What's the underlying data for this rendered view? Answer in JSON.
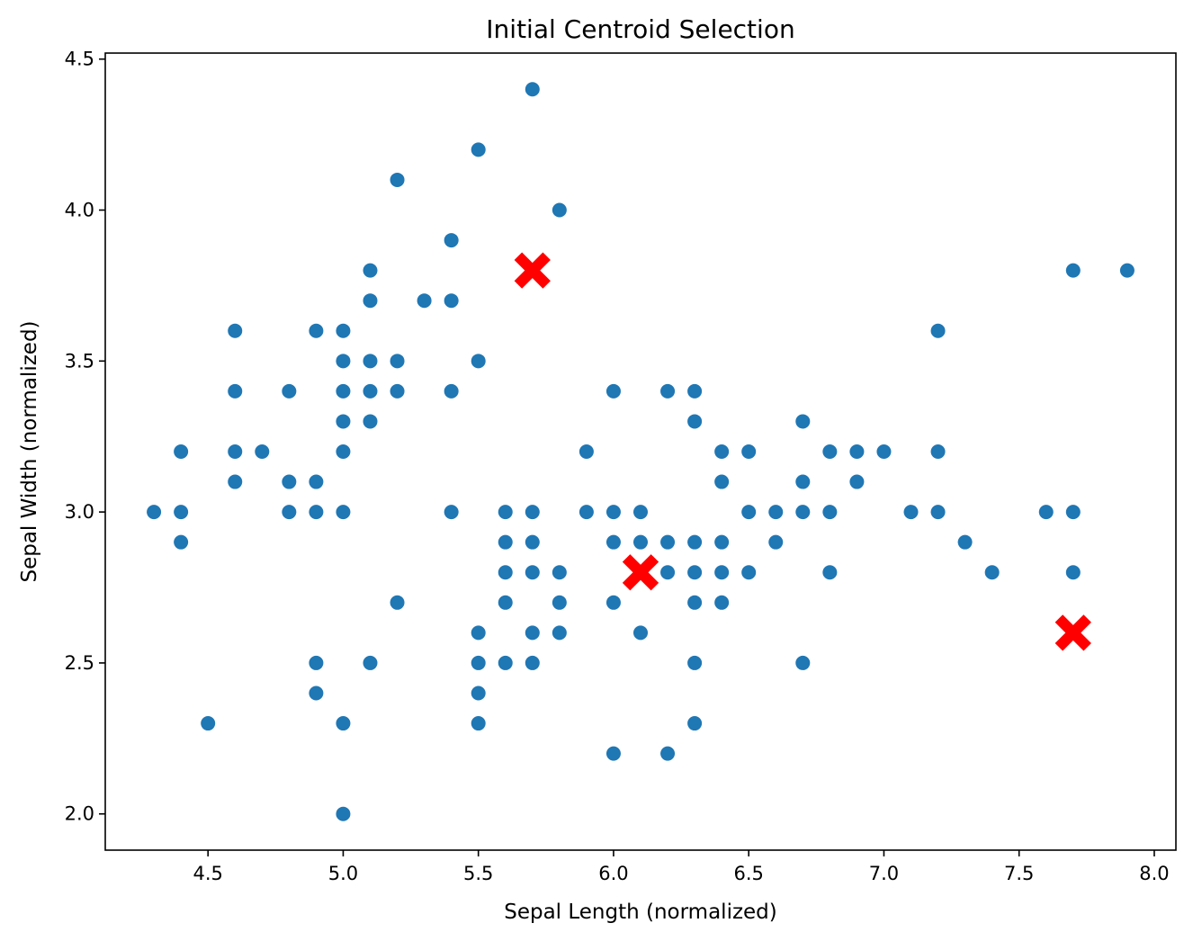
{
  "chart_data": {
    "type": "scatter",
    "title": "Initial Centroid Selection",
    "xlabel": "Sepal Length (normalized)",
    "ylabel": "Sepal Width (normalized)",
    "xlim": [
      4.12,
      8.08
    ],
    "ylim": [
      1.88,
      4.52
    ],
    "xticks": [
      4.5,
      5.0,
      5.5,
      6.0,
      6.5,
      7.0,
      7.5,
      8.0
    ],
    "yticks": [
      2.0,
      2.5,
      3.0,
      3.5,
      4.0,
      4.5
    ],
    "xtick_labels": [
      "4.5",
      "5.0",
      "5.5",
      "6.0",
      "6.5",
      "7.0",
      "7.5",
      "8.0"
    ],
    "ytick_labels": [
      "2.0",
      "2.5",
      "3.0",
      "3.5",
      "4.0",
      "4.5"
    ],
    "grid": false,
    "colors": {
      "points": "#1f77b4",
      "centroids": "#ff0000"
    },
    "series": [
      {
        "marker": "circle",
        "color": "#1f77b4",
        "points": [
          [
            4.3,
            3.0
          ],
          [
            4.4,
            3.2
          ],
          [
            4.4,
            3.0
          ],
          [
            4.4,
            2.9
          ],
          [
            4.5,
            2.3
          ],
          [
            4.6,
            3.6
          ],
          [
            4.6,
            3.4
          ],
          [
            4.6,
            3.2
          ],
          [
            4.6,
            3.1
          ],
          [
            4.7,
            3.2
          ],
          [
            4.8,
            3.4
          ],
          [
            4.8,
            3.1
          ],
          [
            4.8,
            3.0
          ],
          [
            4.9,
            3.6
          ],
          [
            4.9,
            3.1
          ],
          [
            4.9,
            3.0
          ],
          [
            4.9,
            2.5
          ],
          [
            4.9,
            2.4
          ],
          [
            5.0,
            3.6
          ],
          [
            5.0,
            3.5
          ],
          [
            5.0,
            3.4
          ],
          [
            5.0,
            3.3
          ],
          [
            5.0,
            3.2
          ],
          [
            5.0,
            3.0
          ],
          [
            5.0,
            2.3
          ],
          [
            5.0,
            2.0
          ],
          [
            5.1,
            3.8
          ],
          [
            5.1,
            3.7
          ],
          [
            5.1,
            3.5
          ],
          [
            5.1,
            3.4
          ],
          [
            5.1,
            3.3
          ],
          [
            5.1,
            2.5
          ],
          [
            5.2,
            4.1
          ],
          [
            5.2,
            3.5
          ],
          [
            5.2,
            3.4
          ],
          [
            5.2,
            2.7
          ],
          [
            5.3,
            3.7
          ],
          [
            5.4,
            3.9
          ],
          [
            5.4,
            3.7
          ],
          [
            5.4,
            3.4
          ],
          [
            5.4,
            3.0
          ],
          [
            5.5,
            4.2
          ],
          [
            5.5,
            3.5
          ],
          [
            5.5,
            2.6
          ],
          [
            5.5,
            2.5
          ],
          [
            5.5,
            2.4
          ],
          [
            5.5,
            2.3
          ],
          [
            5.6,
            3.0
          ],
          [
            5.6,
            2.9
          ],
          [
            5.6,
            2.8
          ],
          [
            5.6,
            2.7
          ],
          [
            5.6,
            2.5
          ],
          [
            5.7,
            4.4
          ],
          [
            5.7,
            3.0
          ],
          [
            5.7,
            2.9
          ],
          [
            5.7,
            2.8
          ],
          [
            5.7,
            2.6
          ],
          [
            5.7,
            2.5
          ],
          [
            5.8,
            4.0
          ],
          [
            5.8,
            2.8
          ],
          [
            5.8,
            2.7
          ],
          [
            5.8,
            2.6
          ],
          [
            5.9,
            3.2
          ],
          [
            5.9,
            3.0
          ],
          [
            6.0,
            3.4
          ],
          [
            6.0,
            3.0
          ],
          [
            6.0,
            2.9
          ],
          [
            6.0,
            2.7
          ],
          [
            6.0,
            2.2
          ],
          [
            6.1,
            3.0
          ],
          [
            6.1,
            2.9
          ],
          [
            6.1,
            2.8
          ],
          [
            6.1,
            2.6
          ],
          [
            6.2,
            3.4
          ],
          [
            6.2,
            2.9
          ],
          [
            6.2,
            2.8
          ],
          [
            6.2,
            2.2
          ],
          [
            6.3,
            3.4
          ],
          [
            6.3,
            3.3
          ],
          [
            6.3,
            2.9
          ],
          [
            6.3,
            2.8
          ],
          [
            6.3,
            2.7
          ],
          [
            6.3,
            2.5
          ],
          [
            6.3,
            2.3
          ],
          [
            6.4,
            3.2
          ],
          [
            6.4,
            3.1
          ],
          [
            6.4,
            2.9
          ],
          [
            6.4,
            2.8
          ],
          [
            6.4,
            2.7
          ],
          [
            6.5,
            3.2
          ],
          [
            6.5,
            3.0
          ],
          [
            6.5,
            2.8
          ],
          [
            6.6,
            3.0
          ],
          [
            6.6,
            2.9
          ],
          [
            6.7,
            3.3
          ],
          [
            6.7,
            3.1
          ],
          [
            6.7,
            3.0
          ],
          [
            6.7,
            2.5
          ],
          [
            6.8,
            3.2
          ],
          [
            6.8,
            3.0
          ],
          [
            6.8,
            2.8
          ],
          [
            6.9,
            3.2
          ],
          [
            6.9,
            3.1
          ],
          [
            7.0,
            3.2
          ],
          [
            7.1,
            3.0
          ],
          [
            7.2,
            3.6
          ],
          [
            7.2,
            3.2
          ],
          [
            7.2,
            3.0
          ],
          [
            7.3,
            2.9
          ],
          [
            7.4,
            2.8
          ],
          [
            7.6,
            3.0
          ],
          [
            7.7,
            3.8
          ],
          [
            7.7,
            3.0
          ],
          [
            7.7,
            2.8
          ],
          [
            7.9,
            3.8
          ]
        ]
      },
      {
        "marker": "X",
        "color": "#ff0000",
        "points": [
          [
            5.7,
            3.8
          ],
          [
            6.1,
            2.8
          ],
          [
            7.7,
            2.6
          ]
        ]
      }
    ]
  }
}
